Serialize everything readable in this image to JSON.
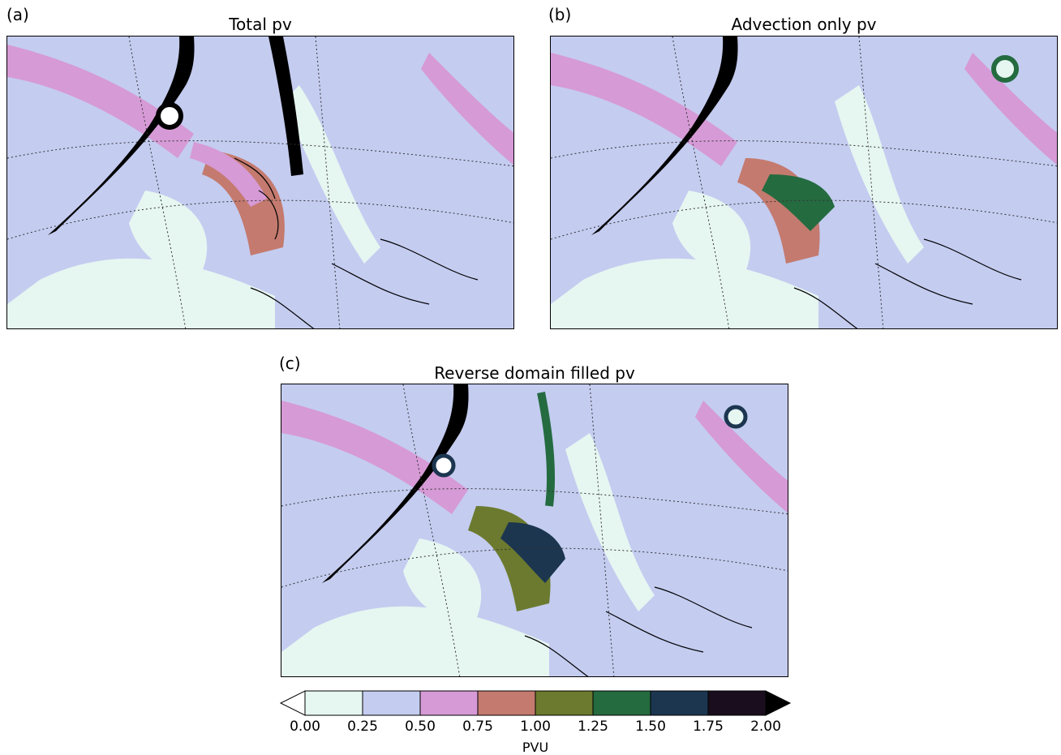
{
  "panels": [
    {
      "id": "a",
      "label": "(a)",
      "title": "Total pv"
    },
    {
      "id": "b",
      "label": "(b)",
      "title": "Advection only pv"
    },
    {
      "id": "c",
      "label": "(c)",
      "title": "Reverse domain filled pv"
    }
  ],
  "colorbar": {
    "label": "PVU",
    "ticks": [
      "0.00",
      "0.25",
      "0.50",
      "0.75",
      "1.00",
      "1.25",
      "1.50",
      "1.75",
      "2.00"
    ],
    "levels": [
      0,
      0.25,
      0.5,
      0.75,
      1.0,
      1.25,
      1.5,
      1.75,
      2.0
    ],
    "colors": [
      "#e6f6f1",
      "#c4ccf0",
      "#d69ad6",
      "#c47a6e",
      "#6b7a2e",
      "#246b40",
      "#1c3650",
      "#1a0e1e"
    ],
    "under_color": "#ffffff",
    "over_color": "#000000"
  }
}
